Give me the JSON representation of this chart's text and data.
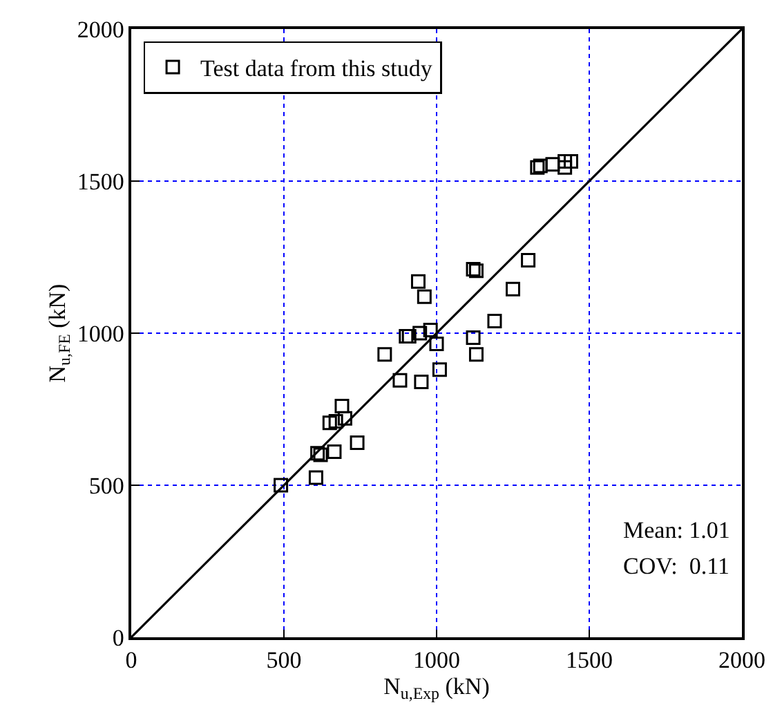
{
  "chart_data": {
    "type": "scatter",
    "xlabel": "N$_{u,Exp}$ (kN)",
    "ylabel": "N$_{u,FE}$ (kN)",
    "xlim": [
      0,
      2000
    ],
    "ylim": [
      0,
      2000
    ],
    "xticks": [
      0,
      500,
      1000,
      1500,
      2000
    ],
    "yticks": [
      0,
      500,
      1000,
      1500,
      2000
    ],
    "grid": true,
    "legend": "top left",
    "marker": "square",
    "annotations": [
      "Mean: 1.01",
      "COV:  0.11"
    ],
    "series": [
      {
        "name": "Test data from this study",
        "color": "#000000",
        "x": [
          490,
          605,
          610,
          620,
          650,
          665,
          670,
          690,
          700,
          740,
          830,
          880,
          900,
          910,
          940,
          945,
          950,
          960,
          980,
          1000,
          1010,
          1120,
          1120,
          1130,
          1130,
          1190,
          1250,
          1300,
          1330,
          1340,
          1380,
          1420,
          1420,
          1440
        ],
        "values": [
          500,
          525,
          605,
          600,
          705,
          610,
          710,
          760,
          720,
          640,
          930,
          845,
          990,
          990,
          1170,
          1000,
          840,
          1120,
          1010,
          965,
          880,
          985,
          1210,
          1205,
          930,
          1040,
          1145,
          1240,
          1545,
          1550,
          1555,
          1565,
          1545,
          1565
        ]
      },
      {
        "color": "#000000",
        "type": "line",
        "marker": "none",
        "line_style": "solid",
        "x": [
          0,
          2000
        ],
        "values": [
          0,
          2000
        ]
      }
    ]
  }
}
